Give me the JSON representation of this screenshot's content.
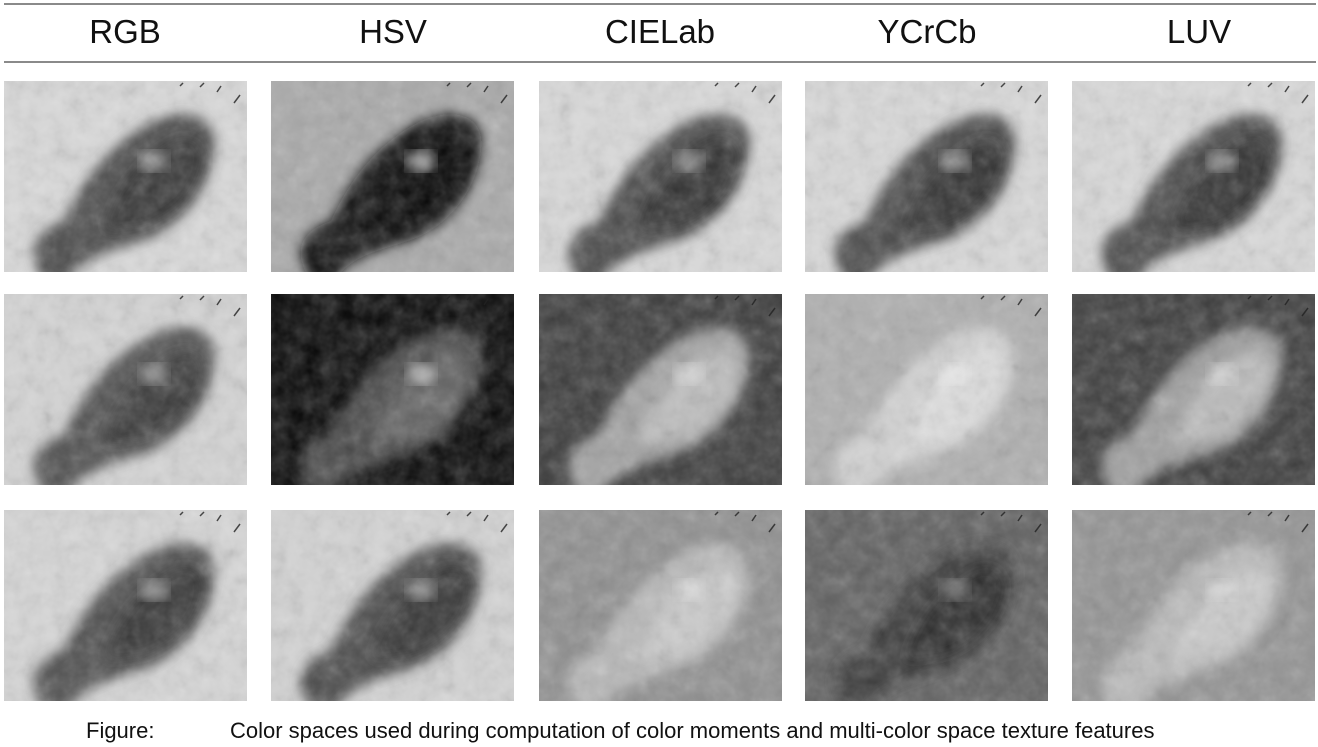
{
  "columns": [
    "RGB",
    "HSV",
    "CIELab",
    "YCrCb",
    "LUV"
  ],
  "caption": {
    "label": "Figure:",
    "text": "Color spaces used during computation of color moments and multi-color space texture features"
  },
  "grid": {
    "rows": 3,
    "cells": [
      [
        {
          "space": "RGB",
          "bg": "#d9d9d9",
          "lesion": "#4a4a4a",
          "core": "#2e2e2e",
          "highlight": "#bdbdbd"
        },
        {
          "space": "HSV",
          "bg": "#a9a9a9",
          "lesion": "#0d0d0d",
          "core": "#050505",
          "highlight": "#f2f2f2"
        },
        {
          "space": "CIELab",
          "bg": "#d9d9d9",
          "lesion": "#484848",
          "core": "#2c2c2c",
          "highlight": "#bdbdbd"
        },
        {
          "space": "YCrCb",
          "bg": "#d9d9d9",
          "lesion": "#484848",
          "core": "#2c2c2c",
          "highlight": "#bdbdbd"
        },
        {
          "space": "LUV",
          "bg": "#d9d9d9",
          "lesion": "#484848",
          "core": "#2c2c2c",
          "highlight": "#bdbdbd"
        }
      ],
      [
        {
          "space": "RGB",
          "bg": "#d4d4d4",
          "lesion": "#4f4f4f",
          "core": "#303030",
          "highlight": "#bcbcbc"
        },
        {
          "space": "HSV",
          "bg": "#050505",
          "lesion": "#4a4a4a",
          "core": "#6a6a6a",
          "highlight": "#dcdcdc"
        },
        {
          "space": "CIELab",
          "bg": "#3a3a3a",
          "lesion": "#a2a2a2",
          "core": "#c4c4c4",
          "highlight": "#e6e6e6"
        },
        {
          "space": "YCrCb",
          "bg": "#aeaeae",
          "lesion": "#d2d2d2",
          "core": "#e2e2e2",
          "highlight": "#f4f4f4"
        },
        {
          "space": "LUV",
          "bg": "#3c3c3c",
          "lesion": "#9e9e9e",
          "core": "#c2c2c2",
          "highlight": "#e4e4e4"
        }
      ],
      [
        {
          "space": "RGB",
          "bg": "#d6d6d6",
          "lesion": "#4d4d4d",
          "core": "#2f2f2f",
          "highlight": "#bcbcbc"
        },
        {
          "space": "HSV",
          "bg": "#d3d3d3",
          "lesion": "#4b4b4b",
          "core": "#2f2f2f",
          "highlight": "#bbbbbb"
        },
        {
          "space": "CIELab",
          "bg": "#8f8f8f",
          "lesion": "#b8b8b8",
          "core": "#cfcfcf",
          "highlight": "#e4e4e4"
        },
        {
          "space": "YCrCb",
          "bg": "#5f5f5f",
          "lesion": "#3a3a3a",
          "core": "#262626",
          "highlight": "#8a8a8a"
        },
        {
          "space": "LUV",
          "bg": "#939393",
          "lesion": "#bababa",
          "core": "#cfcfcf",
          "highlight": "#e2e2e2"
        }
      ]
    ]
  }
}
